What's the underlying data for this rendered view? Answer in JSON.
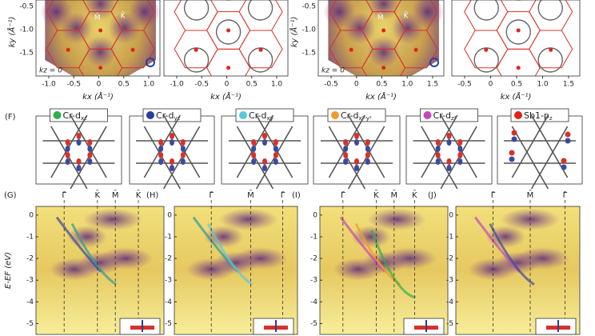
{
  "fermi_panels": [
    {
      "y_label": "ky (Å⁻¹)",
      "yticks": [
        "-0.5",
        "-1.0",
        "-1.5"
      ],
      "x_label": "kx (Å⁻¹)",
      "xticks": [
        "-1.0",
        "-0.5",
        "0",
        "0.5",
        "1.0"
      ],
      "annotations": [
        "M̄",
        "K̄",
        "kz = 0"
      ]
    },
    {
      "x_label": "kx (Å⁻¹)",
      "xticks": [
        "-1.0",
        "-0.5",
        "0",
        "0.5",
        "1.0"
      ]
    },
    {
      "y_label": "ky (Å⁻¹)",
      "yticks": [
        "-0.5",
        "-1.0",
        "-1.5"
      ],
      "x_label": "kx (Å⁻¹)",
      "xticks": [
        "-0.5",
        "0",
        "0.5",
        "1.0",
        "1.5"
      ],
      "annotations": [
        "M̄",
        "K̄",
        "kz = 0"
      ]
    },
    {
      "x_label": "kx (Å⁻¹)",
      "xticks": [
        "-0.5",
        "0",
        "0.5",
        "1.0",
        "1.5"
      ]
    }
  ],
  "orbital_panel": {
    "label": "(F)",
    "orbitals": [
      {
        "name": "Cr-d",
        "sub": "xz",
        "color": "#2db04b"
      },
      {
        "name": "Cr-d",
        "sub": "yz",
        "color": "#2a3f9a"
      },
      {
        "name": "Cr-d",
        "sub": "xy",
        "color": "#5cc8d8"
      },
      {
        "name": "Cr-d",
        "sub": "x²-y²",
        "color": "#f39a2b"
      },
      {
        "name": "Cr-d",
        "sub": "z²",
        "color": "#c548b8"
      },
      {
        "name": "Sb1-p",
        "sub": "z",
        "color": "#e2231a"
      }
    ]
  },
  "band_panels": {
    "y_label": "E-EF (eV)",
    "yticks": [
      0,
      -1,
      -2,
      -3,
      -4,
      -5
    ],
    "ylim": [
      0.4,
      -5.5
    ],
    "panels": [
      {
        "label": "(G)",
        "kpoints": [
          "Γ̄",
          "K̄",
          "M̄",
          "K̄"
        ]
      },
      {
        "label": "(H)",
        "kpoints": [
          "Γ̄",
          "M̄",
          "Γ̄"
        ]
      },
      {
        "label": "(I)",
        "kpoints": [
          "Γ̄",
          "K̄",
          "M̄",
          "K̄"
        ]
      },
      {
        "label": "(J)",
        "kpoints": [
          "Γ̄",
          "M̄",
          "Γ̄"
        ]
      }
    ]
  }
}
